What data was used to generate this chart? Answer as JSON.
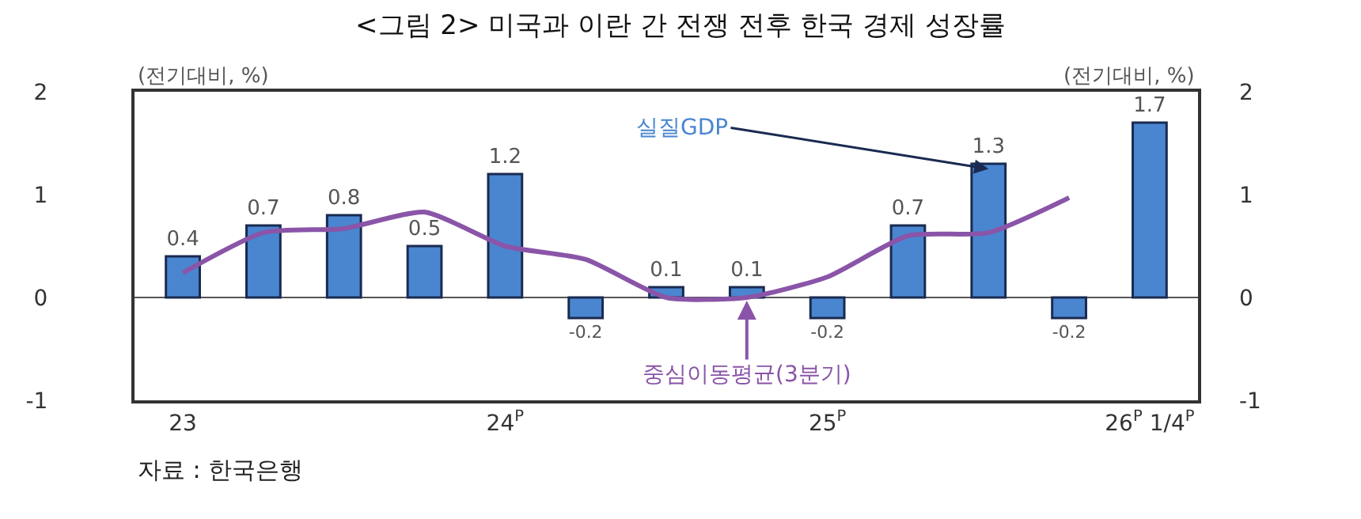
{
  "chart_data": {
    "type": "bar",
    "title": "<그림 2> 미국과 이란 간 전쟁 전후 한국 경제 성장률",
    "ylabel": "(전기대비, %)",
    "y2label": "(전기대비, %)",
    "categories": [
      "23",
      null,
      null,
      null,
      "24$^{P}$",
      null,
      null,
      null,
      "25$^{P}$",
      null,
      null,
      null,
      "26$^{P}$ 1/4$^{P}$"
    ],
    "series": [
      {
        "name": "실질GDP",
        "color": "#4a86d0",
        "values": [
          0.4,
          0.7,
          0.8,
          0.5,
          1.2,
          -0.2,
          0.1,
          0.1,
          -0.2,
          0.7,
          1.3,
          -0.2,
          1.7
        ],
        "value_labels": [
          "0.4",
          "0.7",
          "0.8",
          "0.5",
          "1.2",
          "-0.2",
          "0.1",
          "0.1",
          "-0.2",
          "0.7",
          "1.3",
          "-0.2",
          "1.7"
        ]
      },
      {
        "name": "중심이동평균(3분기)",
        "type": "line",
        "color": "#8a55a8",
        "values": [
          0.24,
          0.63,
          0.67,
          0.83,
          0.5,
          0.37,
          0,
          0,
          0.2,
          0.6,
          0.63,
          0.97,
          null
        ]
      }
    ],
    "ylim": [
      -1,
      2
    ],
    "yticks": [
      -1,
      0,
      1,
      2
    ],
    "y2lim": [
      -1,
      2
    ],
    "y2ticks": [
      -1,
      0,
      1,
      2
    ],
    "ref_lines": [
      {
        "axis": "y",
        "value": 0,
        "color": "#555555"
      }
    ],
    "grid": false,
    "legend": false,
    "marker": "none",
    "annotations": [
      "자료 : 한국은행"
    ]
  }
}
